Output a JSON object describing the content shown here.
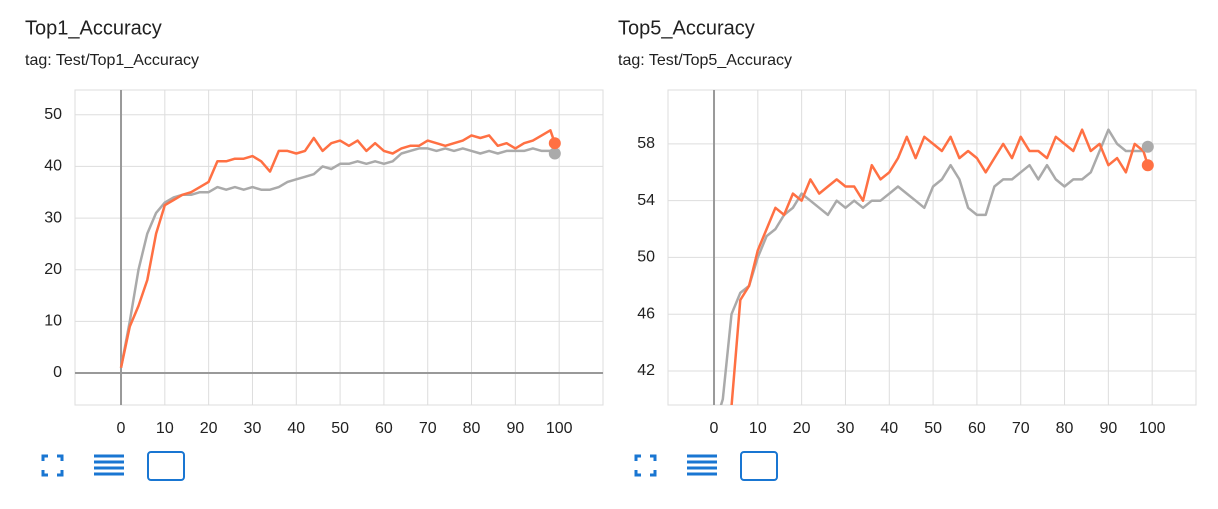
{
  "chart_data": [
    {
      "type": "line",
      "title": "Top1_Accuracy",
      "subtitle": "tag: Test/Top1_Accuracy",
      "x": [
        0,
        2,
        4,
        6,
        8,
        10,
        12,
        14,
        16,
        18,
        20,
        22,
        24,
        26,
        28,
        30,
        32,
        34,
        36,
        38,
        40,
        42,
        44,
        46,
        48,
        50,
        52,
        54,
        56,
        58,
        60,
        62,
        64,
        66,
        68,
        70,
        72,
        74,
        76,
        78,
        80,
        82,
        84,
        86,
        88,
        90,
        92,
        94,
        96,
        98,
        99
      ],
      "series": [
        {
          "color": "#aaaaaa",
          "values": [
            1,
            10,
            20,
            27,
            31,
            33,
            34,
            34.5,
            34.5,
            35,
            35,
            36,
            35.5,
            36,
            35.5,
            36,
            35.5,
            35.5,
            36,
            37,
            37.5,
            38,
            38.5,
            40,
            39.5,
            40.5,
            40.5,
            41,
            40.5,
            41,
            40.5,
            41,
            42.5,
            43,
            43.5,
            43.5,
            43,
            43.5,
            43,
            43.5,
            43,
            42.5,
            43,
            42.5,
            43,
            43,
            43,
            43.5,
            43,
            43,
            42.5
          ]
        },
        {
          "color": "#ff7043",
          "values": [
            1,
            9,
            13,
            18,
            27,
            32.5,
            33.5,
            34.5,
            35,
            36,
            37,
            41,
            41,
            41.5,
            41.5,
            42,
            41,
            39,
            43,
            43,
            42.5,
            43,
            45.5,
            43,
            44.5,
            45,
            44,
            45,
            43,
            44.5,
            43,
            42.5,
            43.5,
            44,
            44,
            45,
            44.5,
            44,
            44.5,
            45,
            46,
            45.5,
            46,
            44,
            44.5,
            43.5,
            44.5,
            45,
            46,
            47,
            44.5
          ]
        }
      ],
      "xlim": [
        -10.5,
        110
      ],
      "ylim": [
        -6.2,
        54.8
      ],
      "xticks": [
        0,
        10,
        20,
        30,
        40,
        50,
        60,
        70,
        80,
        90,
        100
      ],
      "yticks": [
        0,
        10,
        20,
        30,
        40,
        50
      ],
      "grid": true
    },
    {
      "type": "line",
      "title": "Top5_Accuracy",
      "subtitle": "tag: Test/Top5_Accuracy",
      "x": [
        0,
        2,
        4,
        6,
        8,
        10,
        12,
        14,
        16,
        18,
        20,
        22,
        24,
        26,
        28,
        30,
        32,
        34,
        36,
        38,
        40,
        42,
        44,
        46,
        48,
        50,
        52,
        54,
        56,
        58,
        60,
        62,
        64,
        66,
        68,
        70,
        72,
        74,
        76,
        78,
        80,
        82,
        84,
        86,
        88,
        90,
        92,
        94,
        96,
        98,
        99
      ],
      "series": [
        {
          "color": "#aaaaaa",
          "values": [
            38,
            40,
            46,
            47.5,
            48,
            50,
            51.5,
            52,
            53,
            53.5,
            54.5,
            54,
            53.5,
            53,
            54,
            53.5,
            54,
            53.5,
            54,
            54,
            54.5,
            55,
            54.5,
            54,
            53.5,
            55,
            55.5,
            56.5,
            55.5,
            53.5,
            53,
            53,
            55,
            55.5,
            55.5,
            56,
            56.5,
            55.5,
            56.5,
            55.5,
            55,
            55.5,
            55.5,
            56,
            57.5,
            59,
            58,
            57.5,
            57.5,
            57.5,
            57.8
          ]
        },
        {
          "color": "#ff7043",
          "values": [
            36,
            38,
            39.5,
            47,
            48,
            50.5,
            52,
            53.5,
            53,
            54.5,
            54,
            55.5,
            54.5,
            55,
            55.5,
            55,
            55,
            54,
            56.5,
            55.5,
            56,
            57,
            58.5,
            57,
            58.5,
            58,
            57.5,
            58.5,
            57,
            57.5,
            57,
            56,
            57,
            58,
            57,
            58.5,
            57.5,
            57.5,
            57,
            58.5,
            58,
            57.5,
            59,
            57.5,
            58,
            56.5,
            57,
            56,
            58,
            57.5,
            56.5
          ]
        }
      ],
      "xlim": [
        -10.5,
        110
      ],
      "ylim": [
        39.6,
        61.8
      ],
      "xticks": [
        0,
        10,
        20,
        30,
        40,
        50,
        60,
        70,
        80,
        90,
        100
      ],
      "yticks": [
        42,
        46,
        50,
        54,
        58
      ],
      "grid": true
    }
  ]
}
